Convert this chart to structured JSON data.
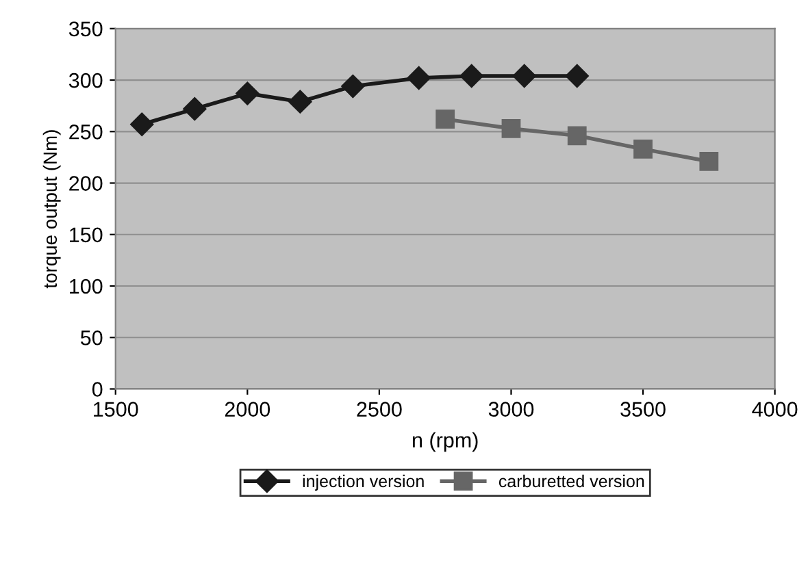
{
  "chart_data": {
    "type": "line",
    "xlabel": "n (rpm)",
    "ylabel": "torque output (Nm)",
    "xlim": [
      1500,
      4000
    ],
    "xticks": [
      1500,
      2000,
      2500,
      3000,
      3500,
      4000
    ],
    "ylim": [
      0,
      350
    ],
    "yticks": [
      0,
      50,
      100,
      150,
      200,
      250,
      300,
      350
    ],
    "grid": "y",
    "legend": "bottom",
    "series": [
      {
        "name": "injection version",
        "color": "#1a1a1a",
        "marker": "diamond",
        "x": [
          1600,
          1800,
          2000,
          2200,
          2400,
          2650,
          2850,
          3050,
          3250
        ],
        "values": [
          257,
          272,
          287,
          279,
          294,
          302,
          304,
          304,
          304
        ]
      },
      {
        "name": "carburetted version",
        "color": "#666666",
        "marker": "square",
        "x": [
          2750,
          3000,
          3250,
          3500,
          3750
        ],
        "values": [
          262,
          253,
          246,
          233,
          221
        ]
      }
    ]
  }
}
